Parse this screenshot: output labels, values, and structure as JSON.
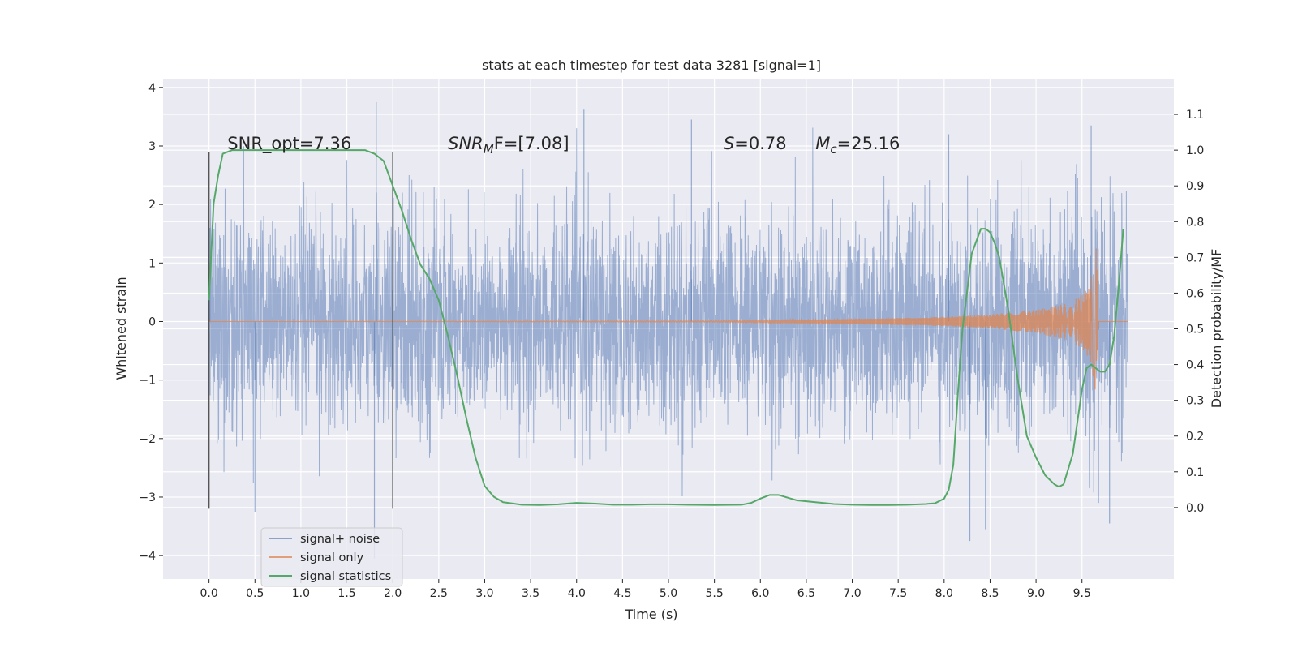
{
  "chart_data": {
    "type": "line",
    "title": "stats at each timestep for test data 3281 [signal=1]",
    "xlabel": "Time (s)",
    "ylabel_left": "Whitened strain",
    "ylabel_right": "Detection probability/MF",
    "xlim": [
      -0.5,
      10.5
    ],
    "ylim_left": [
      -4.4,
      4.15
    ],
    "ylim_right": [
      -0.2,
      1.2
    ],
    "xticks": [
      0.0,
      0.5,
      1.0,
      1.5,
      2.0,
      2.5,
      3.0,
      3.5,
      4.0,
      4.5,
      5.0,
      5.5,
      6.0,
      6.5,
      7.0,
      7.5,
      8.0,
      8.5,
      9.0,
      9.5
    ],
    "xtick_labels": [
      "0.0",
      "0.5",
      "1.0",
      "1.5",
      "2.0",
      "2.5",
      "3.0",
      "3.5",
      "4.0",
      "4.5",
      "5.0",
      "5.5",
      "6.0",
      "6.5",
      "7.0",
      "7.5",
      "8.0",
      "8.5",
      "9.0",
      "9.5"
    ],
    "yticks_left": [
      -4,
      -3,
      -2,
      -1,
      0,
      1,
      2,
      3,
      4
    ],
    "ytick_labels_left": [
      "−4",
      "−3",
      "−2",
      "−1",
      "0",
      "1",
      "2",
      "3",
      "4"
    ],
    "yticks_right": [
      0.0,
      0.1,
      0.2,
      0.3,
      0.4,
      0.5,
      0.6,
      0.7,
      0.8,
      0.9,
      1.0,
      1.1
    ],
    "ytick_labels_right": [
      "0.0",
      "0.1",
      "0.2",
      "0.3",
      "0.4",
      "0.5",
      "0.6",
      "0.7",
      "0.8",
      "0.9",
      "1.0",
      "1.1"
    ],
    "grid": true,
    "legend_position": "bottom-left",
    "colors": {
      "background": "#eaeaf2",
      "grid": "#ffffff",
      "noise": "#4c72b0",
      "signal": "#dd8452",
      "stats": "#55a868",
      "marker_line": "#555555"
    },
    "series": [
      {
        "name": "signal+ noise",
        "description_points": "noisy whitened strain, approx range -3.8 to 3.75",
        "x_range": [
          0.0,
          10.0
        ],
        "peaks_high": [
          [
            0.01,
            1.6
          ],
          [
            1.82,
            3.75
          ],
          [
            4.08,
            3.62
          ],
          [
            5.25,
            3.45
          ],
          [
            8.05,
            3.2
          ],
          [
            9.6,
            3.35
          ]
        ],
        "peaks_low": [
          [
            0.5,
            -3.25
          ],
          [
            1.8,
            -4.05
          ],
          [
            8.28,
            -3.75
          ],
          [
            8.45,
            -3.55
          ],
          [
            9.68,
            -3.1
          ],
          [
            9.8,
            -3.45
          ]
        ]
      },
      {
        "name": "signal only",
        "description_points": "chirp waveform, amplitude grows toward merger near t=9.68",
        "envelope": [
          [
            0.0,
            0.0
          ],
          [
            5.5,
            0.01
          ],
          [
            6.5,
            0.03
          ],
          [
            7.5,
            0.06
          ],
          [
            8.0,
            0.08
          ],
          [
            8.5,
            0.12
          ],
          [
            9.0,
            0.2
          ],
          [
            9.3,
            0.3
          ],
          [
            9.5,
            0.45
          ],
          [
            9.6,
            0.7
          ],
          [
            9.66,
            1.4
          ],
          [
            9.68,
            0.0
          ],
          [
            10.0,
            0.0
          ]
        ]
      },
      {
        "name": "signal statistics",
        "x": [
          0.0,
          0.05,
          0.1,
          0.15,
          0.25,
          0.5,
          1.0,
          1.5,
          1.7,
          1.8,
          1.9,
          2.0,
          2.1,
          2.2,
          2.3,
          2.4,
          2.5,
          2.6,
          2.7,
          2.8,
          2.9,
          3.0,
          3.1,
          3.2,
          3.4,
          3.6,
          3.8,
          4.0,
          4.2,
          4.4,
          4.6,
          4.8,
          5.0,
          5.2,
          5.5,
          5.8,
          5.9,
          6.0,
          6.1,
          6.2,
          6.4,
          6.6,
          6.8,
          7.0,
          7.2,
          7.4,
          7.6,
          7.8,
          7.9,
          8.0,
          8.05,
          8.1,
          8.15,
          8.2,
          8.3,
          8.4,
          8.45,
          8.5,
          8.55,
          8.6,
          8.7,
          8.8,
          8.9,
          9.0,
          9.1,
          9.2,
          9.25,
          9.3,
          9.4,
          9.5,
          9.55,
          9.6,
          9.65,
          9.7,
          9.75,
          9.8,
          9.85,
          9.9,
          9.95
        ],
        "y": [
          0.58,
          0.85,
          0.93,
          0.99,
          1.0,
          1.0,
          1.0,
          1.0,
          1.0,
          0.99,
          0.97,
          0.9,
          0.83,
          0.75,
          0.68,
          0.64,
          0.58,
          0.48,
          0.37,
          0.25,
          0.14,
          0.06,
          0.03,
          0.015,
          0.008,
          0.007,
          0.009,
          0.013,
          0.011,
          0.008,
          0.008,
          0.009,
          0.009,
          0.008,
          0.007,
          0.008,
          0.013,
          0.025,
          0.035,
          0.035,
          0.02,
          0.015,
          0.01,
          0.008,
          0.007,
          0.007,
          0.008,
          0.01,
          0.012,
          0.025,
          0.05,
          0.12,
          0.32,
          0.5,
          0.71,
          0.78,
          0.78,
          0.77,
          0.74,
          0.7,
          0.55,
          0.36,
          0.2,
          0.14,
          0.09,
          0.065,
          0.058,
          0.065,
          0.15,
          0.33,
          0.39,
          0.4,
          0.39,
          0.38,
          0.38,
          0.4,
          0.48,
          0.62,
          0.78
        ]
      }
    ],
    "vertical_lines_x": [
      0.0,
      2.0
    ],
    "annotations": [
      {
        "text_parts": [
          "SNR_opt=7.36"
        ],
        "x": 0.2,
        "y_right": 1.0
      },
      {
        "text_parts": [
          "SNR",
          "M",
          "F=[7.08]"
        ],
        "x": 2.6,
        "y_right": 1.0
      },
      {
        "text_parts": [
          "S",
          "=0.78"
        ],
        "x": 5.6,
        "y_right": 1.0
      },
      {
        "text_parts": [
          "M",
          "c",
          "=25.16"
        ],
        "x": 6.6,
        "y_right": 1.0
      }
    ]
  }
}
